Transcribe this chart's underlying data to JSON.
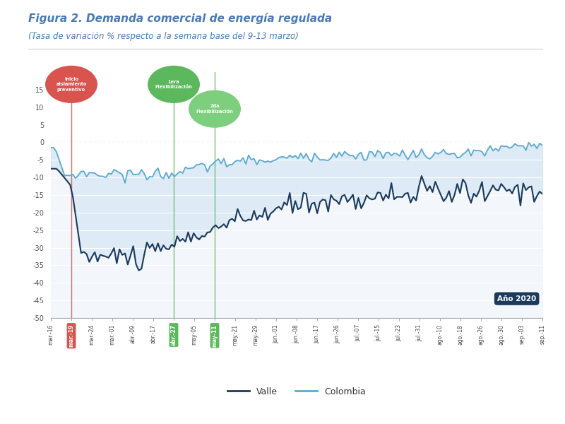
{
  "title": "Figura 2. Demanda comercial de energía regulada",
  "subtitle": "(Tasa de variación % respecto a la semana base del 9-13 marzo)",
  "title_color": "#4a7ab5",
  "subtitle_color": "#4a7ab5",
  "ylim": [
    -50,
    20
  ],
  "yticks": [
    15,
    10,
    5,
    0,
    -5,
    -10,
    -15,
    -20,
    -25,
    -30,
    -35,
    -40,
    -45,
    -50
  ],
  "background_color": "#ffffff",
  "plot_bg_color": "#ffffff",
  "annotation_red_label": "Inicio\naislamiento\npreventivo",
  "annotation_green1_label": "1era\nFlexibilización",
  "annotation_green2_label": "2da\nFlexibilización",
  "legend_valle": "Valle",
  "legend_colombia": "Colombia",
  "anno_box_label": "Año 2020",
  "x_labels": [
    "mar.-16",
    "mar.-19",
    "mar.-24",
    "mar.-01",
    "abr.-09",
    "abr.-17",
    "abr.-27",
    "may-05",
    "may-11",
    "may.-21",
    "may.-29",
    "jun.-01",
    "jun.-08",
    "jun.-17",
    "jun.-26",
    "jul.-07",
    "jul.-15",
    "jul.-23",
    "jul.-31",
    "ago.-10",
    "ago.-18",
    "ago.-26",
    "ago.-30",
    "sep.-03",
    "sep.-11"
  ],
  "highlight_red_idx": 1,
  "highlight_green_idxs": [
    6,
    8
  ],
  "red_vline_x": 1.0,
  "green1_vline_x": 6.0,
  "green2_vline_x": 8.0,
  "valle_color": "#1b3a5c",
  "colombia_color": "#5baad0",
  "fill_between_color": "#c8dff0",
  "fill_under_color": "#ddeaf5",
  "red_circle_color": "#d9534f",
  "green1_circle_color": "#5cb85c",
  "green2_circle_color": "#7dcf7d",
  "anno_box_color": "#1b3a5c"
}
